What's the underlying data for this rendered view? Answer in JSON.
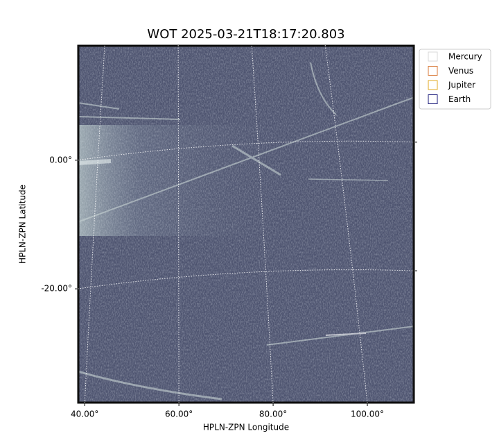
{
  "chart_data": {
    "type": "image",
    "title": "WOT 2025-03-21T18:17:20.803",
    "x_label": "HPLN-ZPN Longitude",
    "y_label": "HPLN-ZPN Latitude",
    "xlim": [
      38.5,
      110
    ],
    "ylim": [
      -37.8,
      17.9
    ],
    "xticks": [
      {
        "value": 40,
        "label": "40.00°"
      },
      {
        "value": 60,
        "label": "60.00°"
      },
      {
        "value": 80,
        "label": "80.00°"
      },
      {
        "value": 100,
        "label": "100.00°"
      }
    ],
    "yticks": [
      {
        "value": 0,
        "label": "0.00°"
      },
      {
        "value": -20,
        "label": "-20.00°"
      }
    ],
    "grid": true,
    "legend_position": "upper right",
    "series": [
      {
        "name": "Mercury",
        "color": "#d9d9d9"
      },
      {
        "name": "Venus",
        "color": "#d97a3a"
      },
      {
        "name": "Jupiter",
        "color": "#e0a820"
      },
      {
        "name": "Earth",
        "color": "#1a1a7a"
      }
    ]
  }
}
